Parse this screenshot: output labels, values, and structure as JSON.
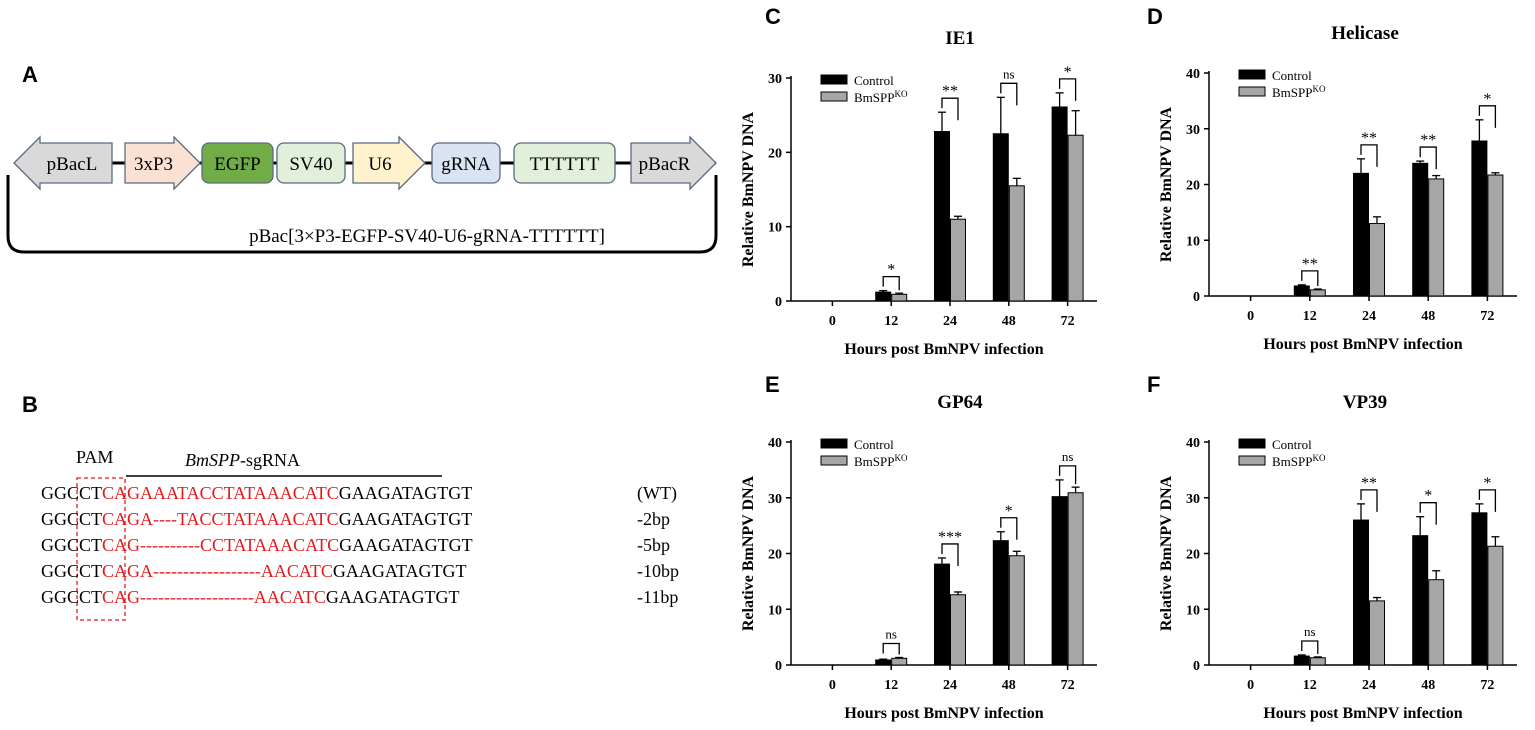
{
  "panels": {
    "A": {
      "label": "A",
      "plasmid_name": "pBac[3×P3-EGFP-SV40-U6-gRNA-TTTTTT]",
      "elements": [
        {
          "label": "pBacL",
          "shape": "arrow-left",
          "fill": "#d9d9d9"
        },
        {
          "label": "3xP3",
          "shape": "arrow-right",
          "fill": "#fbe1d4"
        },
        {
          "label": "EGFP",
          "shape": "box",
          "fill": "#70ad47"
        },
        {
          "label": "SV40",
          "shape": "box",
          "fill": "#e2efda"
        },
        {
          "label": "U6",
          "shape": "arrow-right",
          "fill": "#fff2cc"
        },
        {
          "label": "gRNA",
          "shape": "box",
          "fill": "#dae3f3"
        },
        {
          "label": "TTTTTT",
          "shape": "box",
          "fill": "#e2efda"
        },
        {
          "label": "pBacR",
          "shape": "arrow-right",
          "fill": "#d9d9d9"
        }
      ]
    },
    "B": {
      "label": "B",
      "pam_label": "PAM",
      "sgrna_label_italic": "BmSPP",
      "sgrna_label_suffix": "-sgRNA",
      "highlight_color": "#e31a1c",
      "rows": [
        {
          "pre": "GGCCT",
          "red": "CAGAAATACCTATAAACATC",
          "post": "GAAGATAGTGT",
          "note": "(WT)"
        },
        {
          "pre": "GGCCT",
          "red": "CAGA----TACCTATAAACATC",
          "post": "GAAGATAGTGT",
          "note": "-2bp"
        },
        {
          "pre": "GGCCT",
          "red": "CAG----------CCTATAAACATC",
          "post": "GAAGATAGTGT",
          "note": "-5bp"
        },
        {
          "pre": "GGCCT",
          "red": "CAGA------------------AACATC",
          "post": "GAAGATAGTGT",
          "note": "-10bp"
        },
        {
          "pre": "GGCCT",
          "red": "CAG-------------------AACATC",
          "post": "GAAGATAGTGT",
          "note": "-11bp"
        }
      ]
    }
  },
  "chart_data": [
    {
      "panel": "C",
      "type": "bar",
      "title": "IE1",
      "xlabel": "Hours post BmNPV infection",
      "ylabel": "Relative BmNPV DNA",
      "categories": [
        "0",
        "12",
        "24",
        "48",
        "72"
      ],
      "ylim": [
        0,
        30
      ],
      "yticks": [
        0,
        10,
        20,
        30
      ],
      "series": [
        {
          "name": "Control",
          "color": "#000000",
          "values": [
            0,
            1.2,
            22.8,
            22.5,
            26.1
          ],
          "errors": [
            0,
            0.2,
            2.6,
            4.9,
            1.9
          ]
        },
        {
          "name": "BmSPP",
          "name_sup": "KO",
          "color": "#a6a6a6",
          "values": [
            0,
            0.9,
            11.0,
            15.5,
            22.3
          ],
          "errors": [
            0,
            0.15,
            0.4,
            1.0,
            3.3
          ]
        }
      ],
      "significance": [
        "",
        "*",
        "**",
        "ns",
        "*"
      ]
    },
    {
      "panel": "D",
      "type": "bar",
      "title": "Helicase",
      "xlabel": "Hours post BmNPV infection",
      "ylabel": "Relative BmNPV DNA",
      "categories": [
        "0",
        "12",
        "24",
        "48",
        "72"
      ],
      "ylim": [
        0,
        40
      ],
      "yticks": [
        0,
        10,
        20,
        30,
        40
      ],
      "series": [
        {
          "name": "Control",
          "color": "#000000",
          "values": [
            0,
            1.8,
            22.0,
            23.8,
            27.8
          ],
          "errors": [
            0,
            0.2,
            2.6,
            0.4,
            3.8
          ]
        },
        {
          "name": "BmSPP",
          "name_sup": "KO",
          "color": "#a6a6a6",
          "values": [
            0,
            1.1,
            13.0,
            21.0,
            21.7
          ],
          "errors": [
            0,
            0.15,
            1.2,
            0.6,
            0.4
          ]
        }
      ],
      "significance": [
        "",
        "**",
        "**",
        "**",
        "*"
      ]
    },
    {
      "panel": "E",
      "type": "bar",
      "title": "GP64",
      "xlabel": "Hours post BmNPV infection",
      "ylabel": "Relative BmNPV DNA",
      "categories": [
        "0",
        "12",
        "24",
        "48",
        "72"
      ],
      "ylim": [
        0,
        40
      ],
      "yticks": [
        0,
        10,
        20,
        30,
        40
      ],
      "series": [
        {
          "name": "Control",
          "color": "#000000",
          "values": [
            0,
            0.9,
            18.1,
            22.3,
            30.2
          ],
          "errors": [
            0,
            0.15,
            1.1,
            1.6,
            3.0
          ]
        },
        {
          "name": "BmSPP",
          "name_sup": "KO",
          "color": "#a6a6a6",
          "values": [
            0,
            1.2,
            12.6,
            19.6,
            30.9
          ],
          "errors": [
            0,
            0.15,
            0.5,
            0.8,
            1.0
          ]
        }
      ],
      "significance": [
        "",
        "ns",
        "***",
        "*",
        "ns"
      ]
    },
    {
      "panel": "F",
      "type": "bar",
      "title": "VP39",
      "xlabel": "Hours post BmNPV infection",
      "ylabel": "Relative BmNPV DNA",
      "categories": [
        "0",
        "12",
        "24",
        "48",
        "72"
      ],
      "ylim": [
        0,
        40
      ],
      "yticks": [
        0,
        10,
        20,
        30,
        40
      ],
      "series": [
        {
          "name": "Control",
          "color": "#000000",
          "values": [
            0,
            1.6,
            26.0,
            23.2,
            27.3
          ],
          "errors": [
            0,
            0.2,
            2.9,
            3.4,
            1.6
          ]
        },
        {
          "name": "BmSPP",
          "name_sup": "KO",
          "color": "#a6a6a6",
          "values": [
            0,
            1.3,
            11.5,
            15.3,
            21.3
          ],
          "errors": [
            0,
            0.15,
            0.6,
            1.6,
            1.7
          ]
        }
      ],
      "significance": [
        "",
        "ns",
        "**",
        "*",
        "*"
      ]
    }
  ]
}
